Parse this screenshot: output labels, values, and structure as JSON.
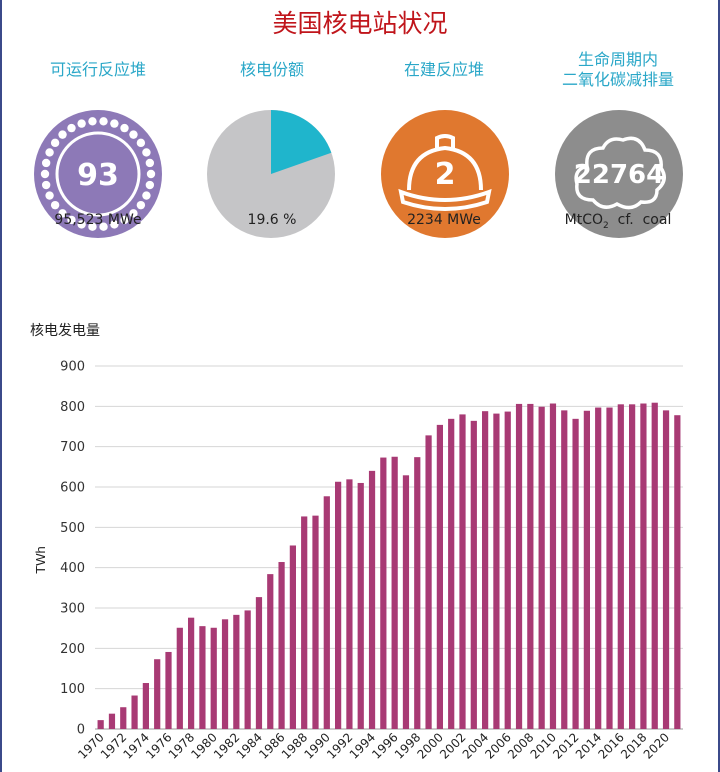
{
  "title": "美国核电站状况",
  "colors": {
    "title": "#c0151b",
    "label": "#2aa7c8",
    "reactor": "#8d79b7",
    "share_rest": "#c5c5c7",
    "share_slice": "#1fb5cc",
    "construction": "#e0782f",
    "carbon": "#8d8d8d",
    "bar": "#a83a74"
  },
  "stats": [
    {
      "label": "可运行反应堆",
      "value": "93",
      "caption": "95,523  MWe",
      "icon": "reactor-core-icon"
    },
    {
      "label": "核电份额",
      "value": "",
      "caption": "19.6  %",
      "icon": "pie-share-icon",
      "share_percent": 19.6
    },
    {
      "label": "在建反应堆",
      "value": "2",
      "caption": "2234  MWe",
      "icon": "hard-hat-icon"
    },
    {
      "label": "生命周期内",
      "label2": "二氧化碳减排量",
      "value": "22764",
      "caption_pre": "MtCO",
      "caption_sub": "2",
      "caption_post": "  cf.  coal",
      "icon": "cloud-icon"
    }
  ],
  "chart_data": {
    "type": "bar",
    "title": "核电发电量",
    "ylabel": "TWh",
    "ylim": [
      0,
      900
    ],
    "yticks": [
      0,
      100,
      200,
      300,
      400,
      500,
      600,
      700,
      800,
      900
    ],
    "x": [
      1970,
      1971,
      1972,
      1973,
      1974,
      1975,
      1976,
      1977,
      1978,
      1979,
      1980,
      1981,
      1982,
      1983,
      1984,
      1985,
      1986,
      1987,
      1988,
      1989,
      1990,
      1991,
      1992,
      1993,
      1994,
      1995,
      1996,
      1997,
      1998,
      1999,
      2000,
      2001,
      2002,
      2003,
      2004,
      2005,
      2006,
      2007,
      2008,
      2009,
      2010,
      2011,
      2012,
      2013,
      2014,
      2015,
      2016,
      2017,
      2018,
      2019,
      2020,
      2021
    ],
    "xtick_labels": [
      "1970",
      "1972",
      "1974",
      "1976",
      "1978",
      "1980",
      "1982",
      "1984",
      "1986",
      "1988",
      "1990",
      "1992",
      "1994",
      "1996",
      "1998",
      "2000",
      "2002",
      "2004",
      "2006",
      "2008",
      "2010",
      "2012",
      "2014",
      "2016",
      "2018",
      "2020"
    ],
    "values": [
      22,
      38,
      54,
      83,
      114,
      173,
      191,
      251,
      276,
      255,
      251,
      272,
      283,
      294,
      327,
      384,
      414,
      455,
      527,
      529,
      577,
      613,
      619,
      610,
      640,
      673,
      675,
      629,
      674,
      728,
      754,
      769,
      780,
      764,
      788,
      782,
      787,
      806,
      806,
      799,
      807,
      790,
      769,
      789,
      797,
      797,
      805,
      805,
      807,
      809,
      790,
      778
    ],
    "grid": true
  }
}
